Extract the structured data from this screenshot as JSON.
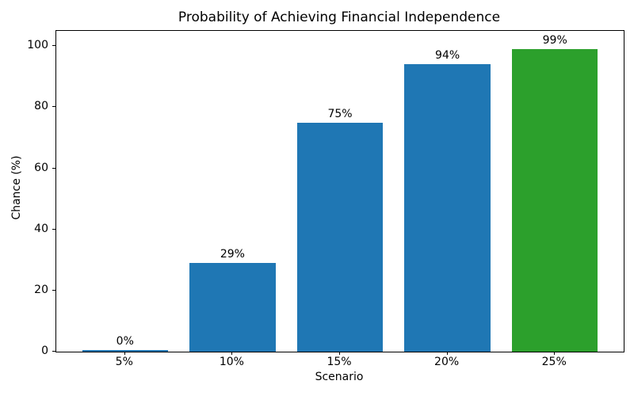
{
  "chart_data": {
    "type": "bar",
    "title": "Probability of Achieving Financial Independence",
    "xlabel": "Scenario",
    "ylabel": "Chance (%)",
    "categories": [
      "5%",
      "10%",
      "15%",
      "20%",
      "25%"
    ],
    "values": [
      0,
      29,
      75,
      94,
      99
    ],
    "bar_labels": [
      "0%",
      "29%",
      "75%",
      "94%",
      "99%"
    ],
    "bar_colors": [
      "#1f77b4",
      "#1f77b4",
      "#1f77b4",
      "#1f77b4",
      "#2ca02c"
    ],
    "yticks": [
      0,
      20,
      40,
      60,
      80,
      100
    ],
    "ylim": [
      0,
      105
    ],
    "xlim_units": [
      -0.64,
      4.64
    ],
    "bar_width_units": 0.8,
    "grid": false,
    "legend": "none",
    "background_color": "#ffffff",
    "axis_color": "#000000",
    "text_color": "#000000"
  }
}
